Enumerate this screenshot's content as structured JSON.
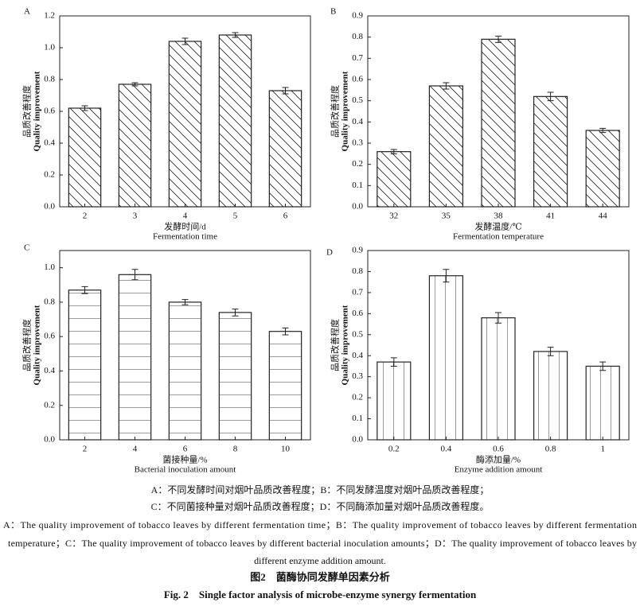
{
  "chart_data": [
    {
      "type": "bar",
      "panel": "A",
      "hatch": "diagonal",
      "y_label_cn": "品质改善程度",
      "y_label_en": "Quality improvement",
      "x_label_cn": "发酵时间/d",
      "x_label_en": "Fermentation time",
      "categories": [
        "2",
        "3",
        "4",
        "5",
        "6"
      ],
      "values": [
        0.62,
        0.77,
        1.04,
        1.08,
        0.73
      ],
      "errors": [
        0.015,
        0.01,
        0.02,
        0.015,
        0.02
      ],
      "color": "#222222",
      "ylim": [
        0,
        1.2
      ],
      "yticks": [
        {
          "value": 0,
          "label": "0.0"
        },
        0.2,
        0.4,
        0.6,
        0.8,
        {
          "value": 1,
          "label": "1.0"
        },
        1.2
      ]
    },
    {
      "type": "bar",
      "panel": "B",
      "hatch": "diagonal",
      "y_label_cn": "品质改善程度",
      "y_label_en": "Quality improvement",
      "x_label_cn": "发酵温度/℃",
      "x_label_en": "Fermentation temperature",
      "categories": [
        "32",
        "35",
        "38",
        "41",
        "44"
      ],
      "values": [
        0.26,
        0.57,
        0.79,
        0.52,
        0.36
      ],
      "errors": [
        0.01,
        0.015,
        0.015,
        0.02,
        0.01
      ],
      "color": "#222222",
      "ylim": [
        0,
        0.9
      ],
      "yticks": [
        {
          "value": 0,
          "label": "0.0"
        },
        0.1,
        0.2,
        0.3,
        0.4,
        0.5,
        0.6,
        0.7,
        0.8,
        0.9
      ]
    },
    {
      "type": "bar",
      "panel": "C",
      "hatch": "horizontal",
      "y_label_cn": "品质改善程度",
      "y_label_en": "Quality improvement",
      "x_label_cn": "菌接种量/%",
      "x_label_en": "Bacterial inoculation amount",
      "categories": [
        "2",
        "4",
        "6",
        "8",
        "10"
      ],
      "values": [
        0.87,
        0.96,
        0.8,
        0.74,
        0.63
      ],
      "errors": [
        0.02,
        0.03,
        0.015,
        0.02,
        0.02
      ],
      "color": "#222222",
      "ylim": [
        0,
        1.1
      ],
      "yticks": [
        {
          "value": 0,
          "label": "0.0"
        },
        0.2,
        0.4,
        0.6,
        0.8,
        {
          "value": 1,
          "label": "1.0"
        }
      ]
    },
    {
      "type": "bar",
      "panel": "D",
      "hatch": "vertical",
      "y_label_cn": "品质改善程度",
      "y_label_en": "Quality improvement",
      "x_label_cn": "酶添加量/%",
      "x_label_en": "Enzyme addition amount",
      "categories": [
        "0.2",
        "0.4",
        "0.6",
        "0.8",
        "1"
      ],
      "values": [
        0.37,
        0.78,
        0.58,
        0.42,
        0.35
      ],
      "errors": [
        0.02,
        0.03,
        0.025,
        0.02,
        0.02
      ],
      "color": "#222222",
      "ylim": [
        0,
        0.9
      ],
      "yticks": [
        {
          "value": 0,
          "label": "0.0"
        },
        0.1,
        0.2,
        0.3,
        0.4,
        0.5,
        0.6,
        0.7,
        0.8,
        0.9
      ]
    }
  ],
  "caption": {
    "cn_lines": [
      "A：不同发酵时间对烟叶品质改善程度；B：不同发酵温度对烟叶品质改善程度；",
      "C：不同菌接种量对烟叶品质改善程度；D：不同酶添加量对烟叶品质改善程度。"
    ],
    "en_lines": [
      "A：The quality improvement of tobacco leaves by different fermentation time；B：The quality improvement of tobacco leaves by different fermentation",
      "temperature；C：The quality improvement of tobacco leaves by different bacterial inoculation amounts；D：The quality improvement of tobacco leaves by",
      "different enzyme addition amount."
    ],
    "figure_cn": "图2　菌酶协同发酵单因素分析",
    "figure_en": "Fig. 2　Single factor analysis of microbe-enzyme synergy fermentation"
  }
}
